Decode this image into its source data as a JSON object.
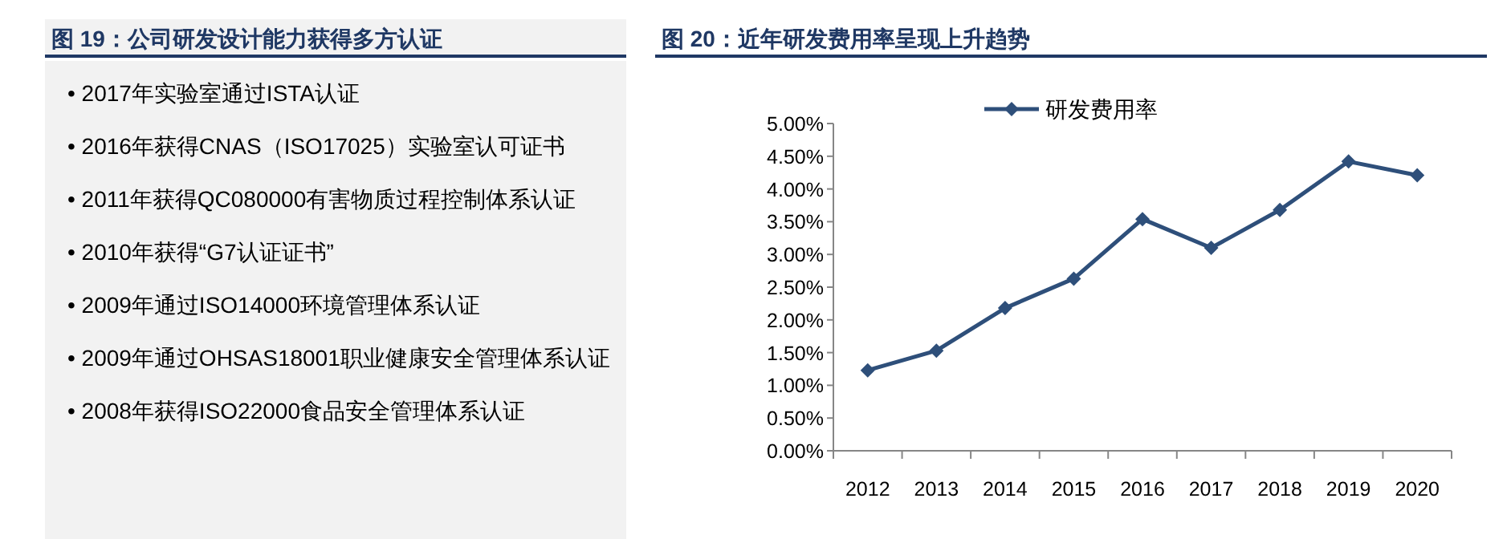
{
  "chart_data": [
    {
      "type": "other",
      "title": "图 19：公司研发设计能力获得多方认证",
      "annotations": [
        "• 2017年实验室通过ISTA认证",
        "• 2016年获得CNAS（ISO17025）实验室认可证书",
        "• 2011年获得QC080000有害物质过程控制体系认证",
        "• 2010年获得“G7认证证书”",
        "• 2009年通过ISO14000环境管理体系认证",
        "• 2009年通过OHSAS18001职业健康安全管理体系认证",
        "• 2008年获得ISO22000食品安全管理体系认证"
      ]
    },
    {
      "type": "line",
      "title": "图 20：近年研发费用率呈现上升趋势",
      "categories": [
        "2012",
        "2013",
        "2014",
        "2015",
        "2016",
        "2017",
        "2018",
        "2019",
        "2020"
      ],
      "series": [
        {
          "name": "研发费用率",
          "color": "#2e4f7a",
          "values": [
            1.23,
            1.53,
            2.18,
            2.63,
            3.54,
            3.1,
            3.68,
            4.42,
            4.21
          ]
        }
      ],
      "marker": "diamond",
      "legend": "top",
      "grid": false,
      "ylim": [
        0,
        5
      ],
      "yticks": [
        {
          "value": 0,
          "label": "0.00%"
        },
        {
          "value": 0.5,
          "label": "0.50%"
        },
        {
          "value": 1,
          "label": "1.00%"
        },
        {
          "value": 1.5,
          "label": "1.50%"
        },
        {
          "value": 2,
          "label": "2.00%"
        },
        {
          "value": 2.5,
          "label": "2.50%"
        },
        {
          "value": 3,
          "label": "3.00%"
        },
        {
          "value": 3.5,
          "label": "3.50%"
        },
        {
          "value": 4,
          "label": "4.00%"
        },
        {
          "value": 4.5,
          "label": "4.50%"
        },
        {
          "value": 5,
          "label": "5.00%"
        }
      ]
    }
  ]
}
